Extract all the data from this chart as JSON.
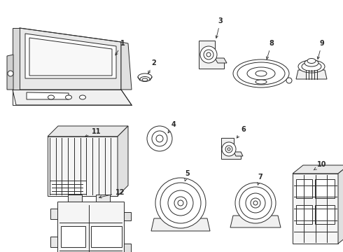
{
  "bg_color": "#ffffff",
  "line_color": "#2a2a2a",
  "lw": 0.7,
  "figwidth": 4.9,
  "figheight": 3.6,
  "dpi": 100
}
